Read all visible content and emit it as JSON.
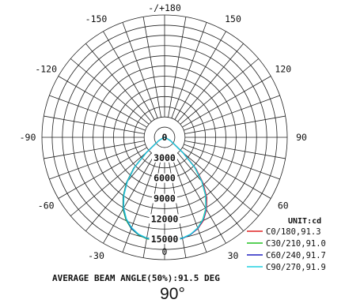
{
  "chart_data": {
    "type": "polar",
    "unit_label": "UNIT:cd",
    "angle_labels": [
      {
        "deg": 180,
        "text": "-/+180"
      },
      {
        "deg": 150,
        "text": "150"
      },
      {
        "deg": 120,
        "text": "120"
      },
      {
        "deg": 90,
        "text": "90"
      },
      {
        "deg": 60,
        "text": "60"
      },
      {
        "deg": 30,
        "text": "30"
      },
      {
        "deg": 0,
        "text": "0"
      },
      {
        "deg": -30,
        "text": "-30"
      },
      {
        "deg": -60,
        "text": "-60"
      },
      {
        "deg": -90,
        "text": "-90"
      },
      {
        "deg": -120,
        "text": "-120"
      },
      {
        "deg": -150,
        "text": "-150"
      }
    ],
    "radial_ticks": [
      0,
      3000,
      6000,
      9000,
      12000,
      15000
    ],
    "rmax": 18000,
    "series": [
      {
        "name": "C0/180,91.3",
        "color": "#e02020",
        "angles": [
          -90,
          -75,
          -60,
          -50,
          -45,
          -40,
          -35,
          -30,
          -25,
          -20,
          -15,
          -10,
          -5,
          0,
          5,
          10,
          15,
          20,
          25,
          30,
          35,
          40,
          45,
          50,
          60,
          75,
          90
        ],
        "values": [
          0,
          100,
          1000,
          3500,
          6200,
          8500,
          10500,
          12100,
          13300,
          14200,
          14800,
          15100,
          15200,
          15250,
          15200,
          15100,
          14800,
          14300,
          13500,
          12300,
          10800,
          8800,
          6500,
          3700,
          1000,
          100,
          0
        ]
      },
      {
        "name": "C30/210,91.0",
        "color": "#20c020",
        "angles": [
          -90,
          -75,
          -60,
          -50,
          -45,
          -40,
          -35,
          -30,
          -25,
          -20,
          -15,
          -10,
          -5,
          0,
          5,
          10,
          15,
          20,
          25,
          30,
          35,
          40,
          45,
          50,
          60,
          75,
          90
        ],
        "values": [
          0,
          100,
          1000,
          3600,
          6400,
          8700,
          10600,
          12200,
          13400,
          14300,
          14850,
          15150,
          15250,
          15250,
          15250,
          15100,
          14800,
          14200,
          13300,
          12100,
          10500,
          8500,
          6200,
          3500,
          1000,
          100,
          0
        ]
      },
      {
        "name": "C60/240,91.7",
        "color": "#2020c0",
        "angles": [
          -90,
          -75,
          -60,
          -50,
          -45,
          -40,
          -35,
          -30,
          -25,
          -20,
          -15,
          -10,
          -5,
          0,
          5,
          10,
          15,
          20,
          25,
          30,
          35,
          40,
          45,
          50,
          60,
          75,
          90
        ],
        "values": [
          0,
          100,
          1000,
          3500,
          6300,
          8600,
          10500,
          12100,
          13300,
          14250,
          14800,
          15100,
          15200,
          15250,
          15200,
          15100,
          14800,
          14250,
          13400,
          12200,
          10600,
          8600,
          6300,
          3500,
          1000,
          100,
          0
        ]
      },
      {
        "name": "C90/270,91.9",
        "color": "#20d0e0",
        "angles": [
          -90,
          -75,
          -60,
          -50,
          -45,
          -40,
          -35,
          -30,
          -25,
          -20,
          -15,
          -10,
          -5,
          0,
          5,
          10,
          15,
          20,
          25,
          30,
          35,
          40,
          45,
          50,
          60,
          75,
          90
        ],
        "values": [
          0,
          100,
          1000,
          3400,
          6200,
          8500,
          10400,
          12000,
          13250,
          14150,
          14750,
          15050,
          15200,
          15250,
          15200,
          15050,
          14750,
          14200,
          13350,
          12150,
          10550,
          8550,
          6250,
          3450,
          1000,
          100,
          0
        ]
      }
    ],
    "footer_text": "AVERAGE BEAM ANGLE(50%):91.5 DEG"
  },
  "caption": "90°"
}
